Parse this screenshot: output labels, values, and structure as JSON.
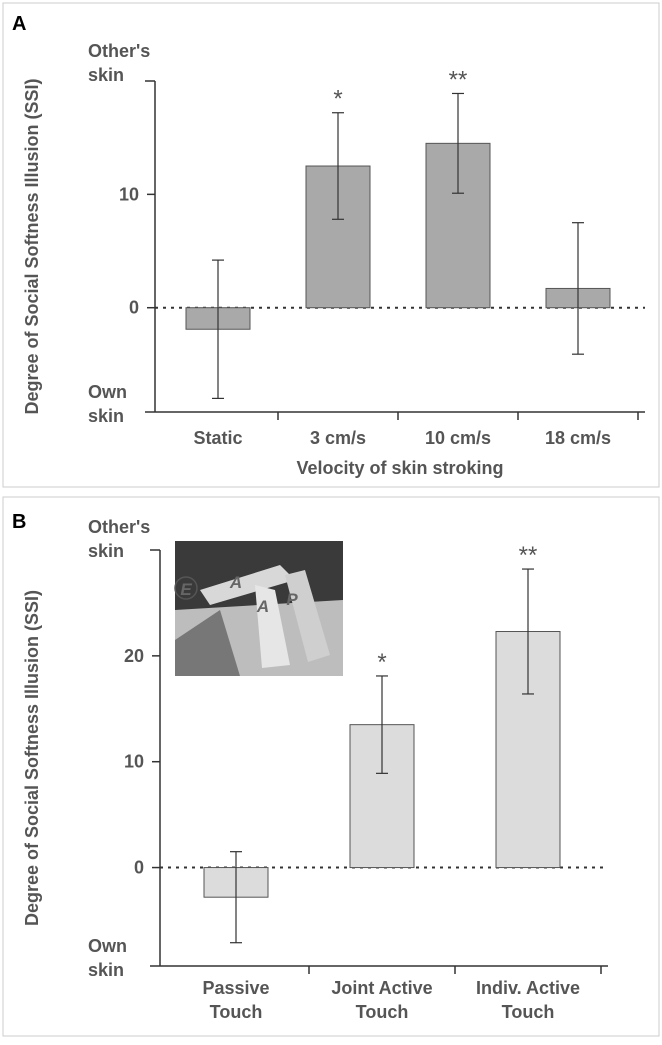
{
  "chart_data": [
    {
      "type": "bar",
      "panel": "A",
      "ylabel": "Degree of Social Softness Illusion (SSI)",
      "xlabel": "Velocity of skin stroking",
      "top_label": "Other's skin",
      "bottom_label": "Own skin",
      "categories": [
        "Static",
        "3 cm/s",
        "10 cm/s",
        "18 cm/s"
      ],
      "values": [
        -1.9,
        12.5,
        14.5,
        1.7
      ],
      "errors": [
        6.1,
        4.7,
        4.4,
        5.8
      ],
      "significance": [
        null,
        "*",
        "**",
        null
      ],
      "color": "#a9a9a9",
      "ylim": [
        -9.2,
        20
      ],
      "yticks": [
        0,
        10
      ]
    },
    {
      "type": "bar",
      "panel": "B",
      "ylabel": "Degree of Social Softness Illusion (SSI)",
      "top_label": "Other's skin",
      "bottom_label": "Own skin",
      "categories": [
        "Passive Touch",
        "Joint Active Touch",
        "Indiv. Active Touch"
      ],
      "values": [
        -2.8,
        13.5,
        22.3
      ],
      "errors": [
        4.3,
        4.6,
        5.9
      ],
      "significance": [
        null,
        "*",
        "**"
      ],
      "color": "#dcdcdc",
      "ylim": [
        -9.3,
        30
      ],
      "yticks": [
        0,
        10,
        20
      ],
      "inset_labels": [
        "E",
        "A",
        "A",
        "P"
      ]
    }
  ]
}
